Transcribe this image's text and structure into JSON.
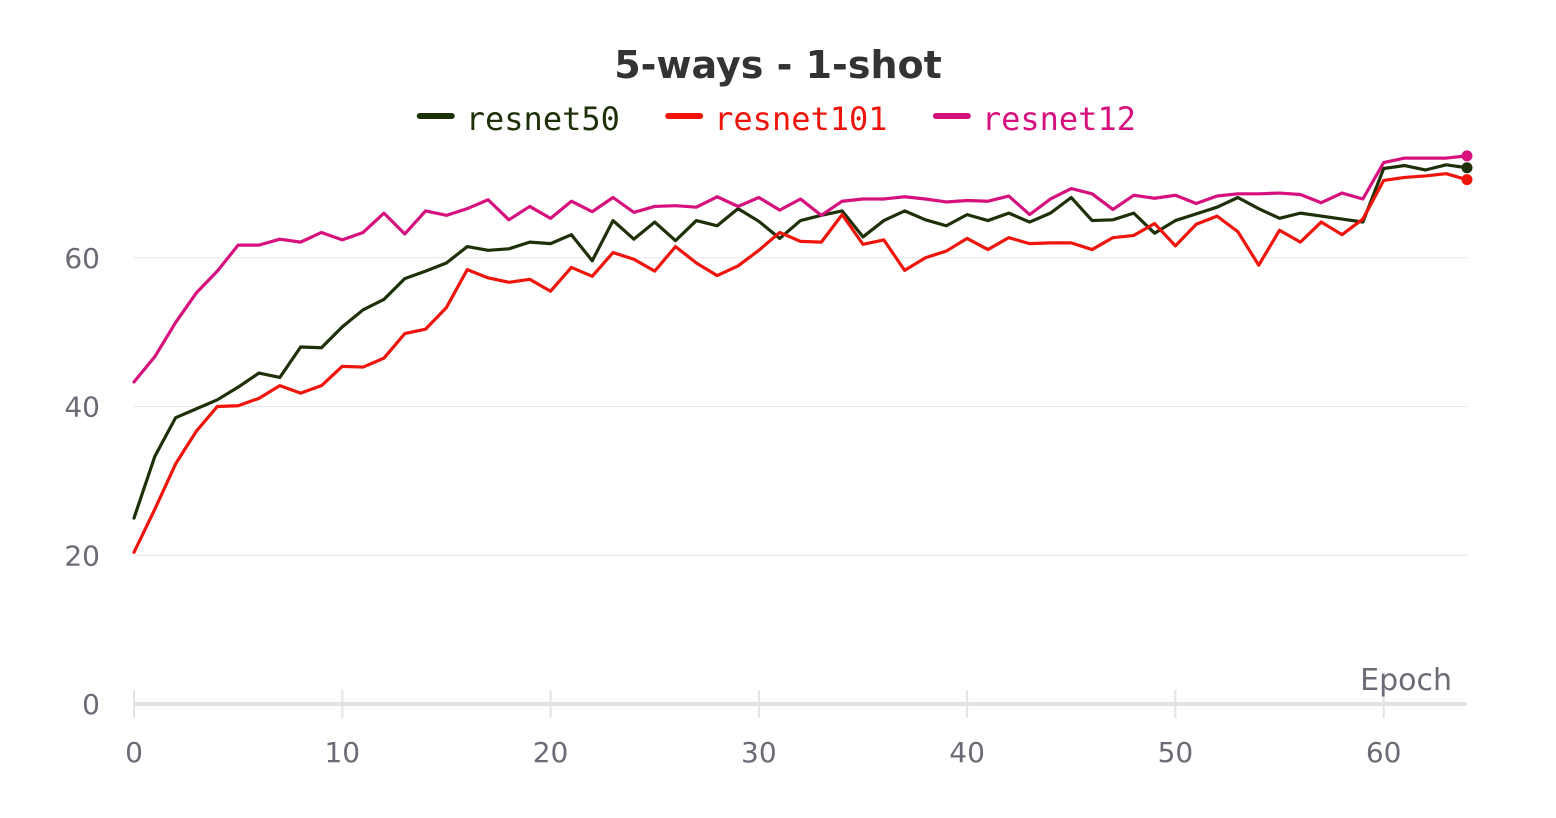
{
  "chart_data": {
    "type": "line",
    "title": "5-ways - 1-shot",
    "xlabel": "Epoch",
    "ylabel": "",
    "xlim": [
      0,
      64
    ],
    "ylim": [
      0,
      80
    ],
    "x_ticks": [
      0,
      10,
      20,
      30,
      40,
      50,
      60
    ],
    "y_ticks": [
      0,
      20,
      40,
      60
    ],
    "grid": true,
    "legend_position": "top-center",
    "series": [
      {
        "name": "resnet50",
        "color": "#1e3008",
        "values": [
          25,
          33.3,
          38.5,
          39.7,
          40.9,
          42.6,
          44.5,
          43.9,
          48,
          47.9,
          50.7,
          53,
          54.4,
          57.2,
          58.2,
          59.3,
          61.5,
          61,
          61.2,
          62.1,
          61.9,
          63.1,
          59.6,
          65,
          62.5,
          64.8,
          62.3,
          65,
          64.3,
          66.6,
          64.9,
          62.6,
          65,
          65.7,
          66.3,
          62.8,
          65,
          66.3,
          65.1,
          64.3,
          65.8,
          65,
          66,
          64.8,
          66,
          68.1,
          65,
          65.1,
          66,
          63.3,
          65,
          65.9,
          66.8,
          68.1,
          66.6,
          65.3,
          66,
          65.6,
          65.2,
          64.8,
          72,
          72.4,
          71.8,
          72.5,
          72.1
        ]
      },
      {
        "name": "resnet101",
        "color": "#f0150c",
        "values": [
          20.4,
          26.2,
          32.3,
          36.7,
          40,
          40.1,
          41.1,
          42.8,
          41.8,
          42.8,
          45.4,
          45.3,
          46.5,
          49.8,
          50.4,
          53.3,
          58.4,
          57.3,
          56.7,
          57.1,
          55.5,
          58.7,
          57.5,
          60.7,
          59.8,
          58.2,
          61.5,
          59.3,
          57.6,
          58.9,
          61,
          63.4,
          62.2,
          62.1,
          65.8,
          61.8,
          62.4,
          58.3,
          60,
          60.9,
          62.6,
          61.1,
          62.7,
          61.9,
          62,
          62,
          61.1,
          62.7,
          63,
          64.6,
          61.6,
          64.5,
          65.6,
          63.5,
          59,
          63.7,
          62.1,
          64.8,
          63.1,
          65.2,
          70.4,
          70.8,
          71,
          71.3,
          70.5
        ]
      },
      {
        "name": "resnet12",
        "color": "#d6117e",
        "values": [
          43.3,
          46.7,
          51.3,
          55.3,
          58.2,
          61.7,
          61.7,
          62.5,
          62.1,
          63.4,
          62.4,
          63.4,
          66,
          63.2,
          66.3,
          65.7,
          66.6,
          67.8,
          65.1,
          66.9,
          65.3,
          67.6,
          66.2,
          68.1,
          66.1,
          66.9,
          67,
          66.8,
          68.2,
          66.9,
          68.1,
          66.4,
          67.9,
          65.7,
          67.6,
          67.9,
          67.9,
          68.2,
          67.9,
          67.5,
          67.7,
          67.6,
          68.3,
          65.8,
          67.9,
          69.3,
          68.6,
          66.5,
          68.4,
          68,
          68.4,
          67.3,
          68.3,
          68.6,
          68.6,
          68.7,
          68.5,
          67.4,
          68.7,
          67.9,
          72.8,
          73.4,
          73.4,
          73.4,
          73.7
        ]
      }
    ]
  }
}
